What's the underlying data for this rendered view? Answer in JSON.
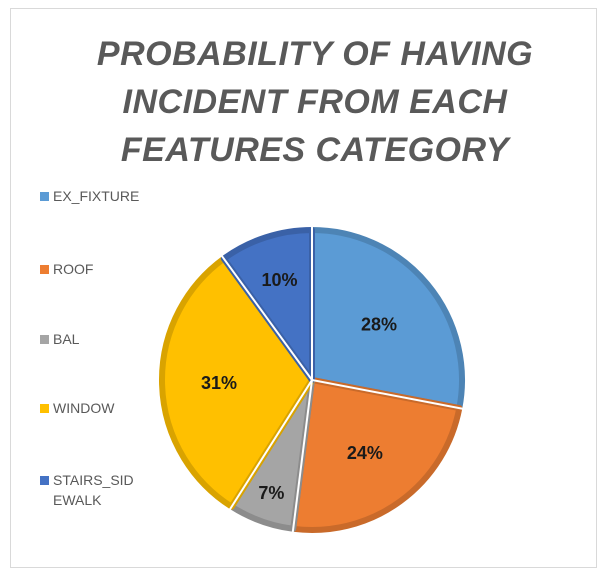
{
  "chart_data": {
    "type": "pie",
    "title": "PROBABILITY OF HAVING INCIDENT FROM EACH FEATURES CATEGORY",
    "categories": [
      "EX_FIXTURE",
      "ROOF",
      "BAL",
      "WINDOW",
      "STAIRS_SIDEWALK"
    ],
    "values": [
      28,
      24,
      7,
      31,
      10
    ],
    "labels": [
      "28%",
      "24%",
      "7%",
      "31%",
      "10%"
    ],
    "colors": [
      "#5b9bd5",
      "#ed7d31",
      "#a5a5a5",
      "#ffc000",
      "#4472c4"
    ],
    "legend_position": "left"
  }
}
